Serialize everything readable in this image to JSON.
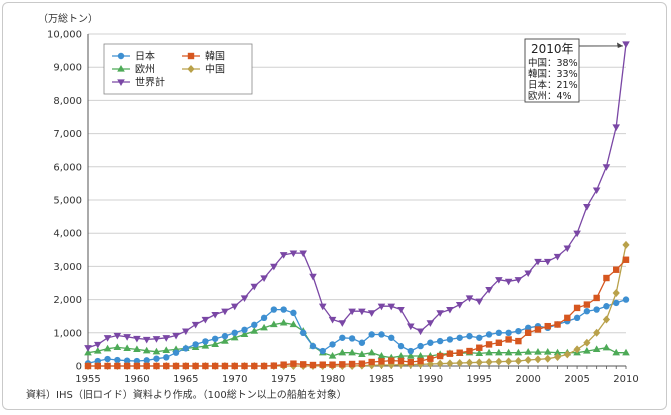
{
  "chart_data": {
    "type": "line",
    "unit_label": "（万総トン）",
    "ylim": [
      0,
      10000
    ],
    "yticks": [
      "0",
      "1,000",
      "2,000",
      "3,000",
      "4,000",
      "5,000",
      "6,000",
      "7,000",
      "8,000",
      "9,000",
      "10,000"
    ],
    "xlim": [
      1955,
      2010
    ],
    "xticks": [
      "1955",
      "1960",
      "1965",
      "1970",
      "1975",
      "1980",
      "1985",
      "1990",
      "1995",
      "2000",
      "2005",
      "2010"
    ],
    "grid": true,
    "legend_position": "top-left",
    "x": [
      1955,
      1956,
      1957,
      1958,
      1959,
      1960,
      1961,
      1962,
      1963,
      1964,
      1965,
      1966,
      1967,
      1968,
      1969,
      1970,
      1971,
      1972,
      1973,
      1974,
      1975,
      1976,
      1977,
      1978,
      1979,
      1980,
      1981,
      1982,
      1983,
      1984,
      1985,
      1986,
      1987,
      1988,
      1989,
      1990,
      1991,
      1992,
      1993,
      1994,
      1995,
      1996,
      1997,
      1998,
      1999,
      2000,
      2001,
      2002,
      2003,
      2004,
      2005,
      2006,
      2007,
      2008,
      2009,
      2010
    ],
    "series": [
      {
        "name": "日本",
        "color": "#3d8fd1",
        "marker": "circle",
        "values": [
          80,
          150,
          210,
          180,
          160,
          150,
          170,
          220,
          260,
          400,
          530,
          650,
          740,
          820,
          900,
          1000,
          1090,
          1240,
          1450,
          1700,
          1700,
          1600,
          1000,
          600,
          450,
          650,
          850,
          830,
          700,
          950,
          950,
          850,
          600,
          450,
          600,
          700,
          750,
          800,
          850,
          900,
          850,
          950,
          1000,
          1000,
          1050,
          1150,
          1200,
          1150,
          1250,
          1350,
          1450,
          1650,
          1700,
          1800,
          1900,
          2000
        ]
      },
      {
        "name": "韓国",
        "color": "#d6561f",
        "marker": "square",
        "values": [
          0,
          0,
          0,
          0,
          0,
          0,
          0,
          0,
          0,
          0,
          0,
          0,
          0,
          0,
          0,
          0,
          0,
          0,
          0,
          10,
          40,
          70,
          50,
          30,
          40,
          40,
          50,
          60,
          70,
          120,
          140,
          160,
          150,
          120,
          150,
          220,
          300,
          370,
          400,
          450,
          550,
          650,
          700,
          800,
          750,
          1000,
          1100,
          1200,
          1250,
          1450,
          1750,
          1850,
          2050,
          2650,
          2900,
          3200
        ]
      },
      {
        "name": "欧州",
        "color": "#4daa57",
        "marker": "triangle-up",
        "values": [
          400,
          450,
          520,
          560,
          530,
          500,
          460,
          430,
          470,
          500,
          530,
          560,
          600,
          650,
          750,
          850,
          950,
          1050,
          1150,
          1250,
          1300,
          1250,
          1050,
          600,
          400,
          300,
          400,
          400,
          350,
          400,
          300,
          250,
          300,
          300,
          300,
          300,
          350,
          380,
          380,
          400,
          380,
          400,
          400,
          400,
          400,
          420,
          420,
          420,
          400,
          400,
          400,
          450,
          500,
          550,
          400,
          400
        ]
      },
      {
        "name": "中国",
        "color": "#b9a14a",
        "marker": "diamond",
        "values": [
          0,
          0,
          0,
          0,
          0,
          0,
          0,
          0,
          0,
          0,
          0,
          0,
          0,
          0,
          0,
          0,
          0,
          0,
          0,
          0,
          0,
          0,
          0,
          0,
          0,
          0,
          0,
          0,
          10,
          20,
          30,
          30,
          40,
          40,
          50,
          60,
          70,
          80,
          90,
          100,
          110,
          120,
          130,
          140,
          150,
          180,
          200,
          220,
          270,
          350,
          500,
          700,
          1000,
          1400,
          2200,
          3650
        ]
      },
      {
        "name": "世界計",
        "color": "#7a47a5",
        "marker": "triangle-down",
        "values": [
          550,
          650,
          850,
          920,
          880,
          830,
          800,
          820,
          850,
          920,
          1050,
          1250,
          1400,
          1550,
          1650,
          1800,
          2050,
          2400,
          2650,
          3000,
          3350,
          3400,
          3400,
          2700,
          1800,
          1400,
          1300,
          1650,
          1650,
          1600,
          1800,
          1800,
          1700,
          1200,
          1050,
          1300,
          1600,
          1700,
          1850,
          2050,
          1950,
          2300,
          2600,
          2550,
          2600,
          2800,
          3150,
          3150,
          3300,
          3550,
          4000,
          4800,
          5300,
          6000,
          7200,
          9700
        ]
      }
    ],
    "annotation": {
      "title": "2010年",
      "lines": [
        "中国：38%",
        "韓国：33%",
        "日本：21%",
        "欧州：4%"
      ]
    }
  },
  "source_note": "資料）IHS（旧ロイド）資料より作成。（100総トン以上の船舶を対象）"
}
